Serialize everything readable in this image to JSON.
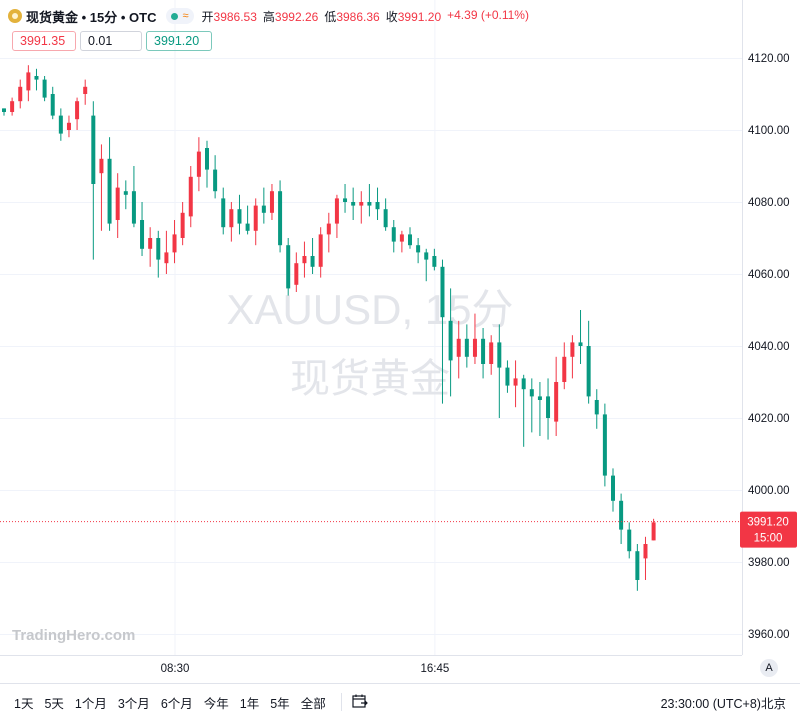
{
  "header": {
    "title": "现货黄金 • 15分 • OTC",
    "status_wave": "≈",
    "ohlc": [
      {
        "label": "开",
        "value": "3986.53"
      },
      {
        "label": "高",
        "value": "3992.26"
      },
      {
        "label": "低",
        "value": "3986.36"
      },
      {
        "label": "收",
        "value": "3991.20"
      }
    ],
    "change": "+4.39 (+0.11%)",
    "sell_price": "3991.35",
    "quantity": "0.01",
    "buy_price": "3991.20"
  },
  "watermark": {
    "symbol": "XAUUSD, 15分",
    "name": "现货黄金"
  },
  "logo_text": "TradingHero.com",
  "chart_data": {
    "type": "candlestick",
    "y_ticks": [
      "4120.00",
      "4100.00",
      "4080.00",
      "4060.00",
      "4040.00",
      "4020.00",
      "4000.00",
      "3980.00",
      "3960.00"
    ],
    "y_range": [
      3954,
      4131
    ],
    "x_ticks": [
      "08:30",
      "16:45"
    ],
    "last_price": "3991.20",
    "last_price_time": "15:00",
    "up_color": "#f23645",
    "down_color": "#089981",
    "candles": [
      [
        4106,
        4106,
        4104,
        4105
      ],
      [
        4105,
        4109,
        4104,
        4108
      ],
      [
        4108,
        4114,
        4106,
        4112
      ],
      [
        4111,
        4118,
        4108,
        4116
      ],
      [
        4115,
        4117,
        4111,
        4114
      ],
      [
        4114,
        4115,
        4108,
        4109
      ],
      [
        4110,
        4112,
        4103,
        4104
      ],
      [
        4104,
        4106,
        4097,
        4099
      ],
      [
        4100,
        4104,
        4098,
        4102
      ],
      [
        4103,
        4109,
        4100,
        4108
      ],
      [
        4110,
        4114,
        4107,
        4112
      ],
      [
        4104,
        4108,
        4064,
        4085
      ],
      [
        4088,
        4096,
        4072,
        4092
      ],
      [
        4092,
        4098,
        4072,
        4074
      ],
      [
        4075,
        4088,
        4070,
        4084
      ],
      [
        4083,
        4086,
        4078,
        4082
      ],
      [
        4083,
        4090,
        4073,
        4074
      ],
      [
        4075,
        4080,
        4065,
        4067
      ],
      [
        4067,
        4073,
        4062,
        4070
      ],
      [
        4070,
        4072,
        4059,
        4064
      ],
      [
        4063,
        4072,
        4060,
        4066
      ],
      [
        4066,
        4075,
        4063,
        4071
      ],
      [
        4070,
        4080,
        4068,
        4077
      ],
      [
        4076,
        4090,
        4073,
        4087
      ],
      [
        4087,
        4098,
        4083,
        4094
      ],
      [
        4095,
        4097,
        4084,
        4089
      ],
      [
        4089,
        4093,
        4081,
        4083
      ],
      [
        4081,
        4084,
        4071,
        4073
      ],
      [
        4073,
        4080,
        4069,
        4078
      ],
      [
        4078,
        4082,
        4071,
        4074
      ],
      [
        4074,
        4079,
        4071,
        4072
      ],
      [
        4072,
        4081,
        4068,
        4079
      ],
      [
        4079,
        4084,
        4074,
        4077
      ],
      [
        4077,
        4085,
        4075,
        4083
      ],
      [
        4083,
        4086,
        4066,
        4068
      ],
      [
        4068,
        4070,
        4054,
        4056
      ],
      [
        4057,
        4066,
        4055,
        4063
      ],
      [
        4063,
        4069,
        4059,
        4065
      ],
      [
        4065,
        4070,
        4060,
        4062
      ],
      [
        4062,
        4073,
        4059,
        4071
      ],
      [
        4071,
        4077,
        4066,
        4074
      ],
      [
        4074,
        4082,
        4070,
        4081
      ],
      [
        4081,
        4085,
        4077,
        4080
      ],
      [
        4080,
        4084,
        4075,
        4079
      ],
      [
        4079,
        4083,
        4074,
        4080
      ],
      [
        4080,
        4085,
        4076,
        4079
      ],
      [
        4080,
        4084,
        4075,
        4078
      ],
      [
        4078,
        4081,
        4072,
        4073
      ],
      [
        4073,
        4075,
        4066,
        4069
      ],
      [
        4069,
        4072,
        4066,
        4071
      ],
      [
        4071,
        4073,
        4067,
        4068
      ],
      [
        4068,
        4070,
        4063,
        4066
      ],
      [
        4066,
        4067,
        4058,
        4064
      ],
      [
        4065,
        4067,
        4061,
        4062
      ],
      [
        4062,
        4064,
        4024,
        4048
      ],
      [
        4047,
        4056,
        4026,
        4036
      ],
      [
        4037,
        4047,
        4031,
        4042
      ],
      [
        4042,
        4046,
        4034,
        4037
      ],
      [
        4037,
        4049,
        4035,
        4042
      ],
      [
        4042,
        4045,
        4031,
        4035
      ],
      [
        4035,
        4043,
        4032,
        4041
      ],
      [
        4041,
        4046,
        4020,
        4034
      ],
      [
        4034,
        4036,
        4027,
        4029
      ],
      [
        4029,
        4036,
        4023,
        4031
      ],
      [
        4031,
        4032,
        4012,
        4028
      ],
      [
        4028,
        4031,
        4016,
        4026
      ],
      [
        4026,
        4030,
        4015,
        4025
      ],
      [
        4026,
        4031,
        4014,
        4020
      ],
      [
        4019,
        4037,
        4015,
        4030
      ],
      [
        4030,
        4041,
        4028,
        4037
      ],
      [
        4037,
        4043,
        4031,
        4041
      ],
      [
        4041,
        4050,
        4035,
        4040
      ],
      [
        4040,
        4047,
        4024,
        4026
      ],
      [
        4025,
        4028,
        4017,
        4021
      ],
      [
        4021,
        4024,
        4001,
        4004
      ],
      [
        4004,
        4006,
        3994,
        3997
      ],
      [
        3997,
        3999,
        3985,
        3989
      ],
      [
        3989,
        3991,
        3981,
        3983
      ],
      [
        3983,
        3985,
        3972,
        3975
      ],
      [
        3981,
        3987,
        3975,
        3985
      ],
      [
        3986,
        3992,
        3986,
        3991
      ]
    ]
  },
  "bottom": {
    "ranges": [
      "1天",
      "5天",
      "1个月",
      "3个月",
      "6个月",
      "今年",
      "1年",
      "5年",
      "全部"
    ],
    "clock": "23:30:00 (UTC+8)",
    "tz": "北京",
    "auto_scale": "A"
  }
}
